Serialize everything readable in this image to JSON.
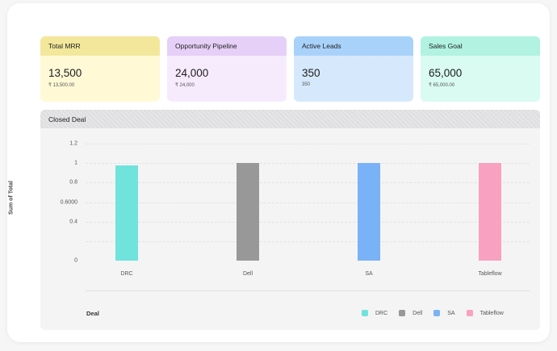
{
  "cards": [
    {
      "title": "Total MRR",
      "value": "13,500",
      "sub": "₹ 13,500.00",
      "head_color": "#f3e79b",
      "body_color": "#fff9d6"
    },
    {
      "title": "Opportunity Pipeline",
      "value": "24,000",
      "sub": "₹ 24,000",
      "head_color": "#e6d0f7",
      "body_color": "#f6ebfd"
    },
    {
      "title": "Active Leads",
      "value": "350",
      "sub": "350",
      "head_color": "#a9d2fb",
      "body_color": "#d6e9fc"
    },
    {
      "title": "Sales Goal",
      "value": "65,000",
      "sub": "₹ 65,000.00",
      "head_color": "#b1f3e0",
      "body_color": "#d9fbf1"
    }
  ],
  "panel": {
    "title": "Closed Deal"
  },
  "chart_data": {
    "type": "bar",
    "title": "Closed Deal",
    "xlabel": "Deal",
    "ylabel": "Sum of Total",
    "categories": [
      "DRC",
      "Dell",
      "SA",
      "Tableflow"
    ],
    "values": [
      0.98,
      1,
      1,
      1
    ],
    "colors": [
      "#6fe3dc",
      "#989899",
      "#7ab2f7",
      "#f8a1c0"
    ],
    "ylim": [
      0,
      1.2
    ],
    "y_ticks": [
      "0",
      "0.4",
      "0.6000",
      "0.8",
      "1",
      "1.2"
    ],
    "y_tick_values": [
      0,
      0.4,
      0.6,
      0.8,
      1,
      1.2
    ],
    "legend": [
      "DRC",
      "Dell",
      "SA",
      "Tableflow"
    ],
    "legend_position": "bottom-right",
    "grid": true
  }
}
